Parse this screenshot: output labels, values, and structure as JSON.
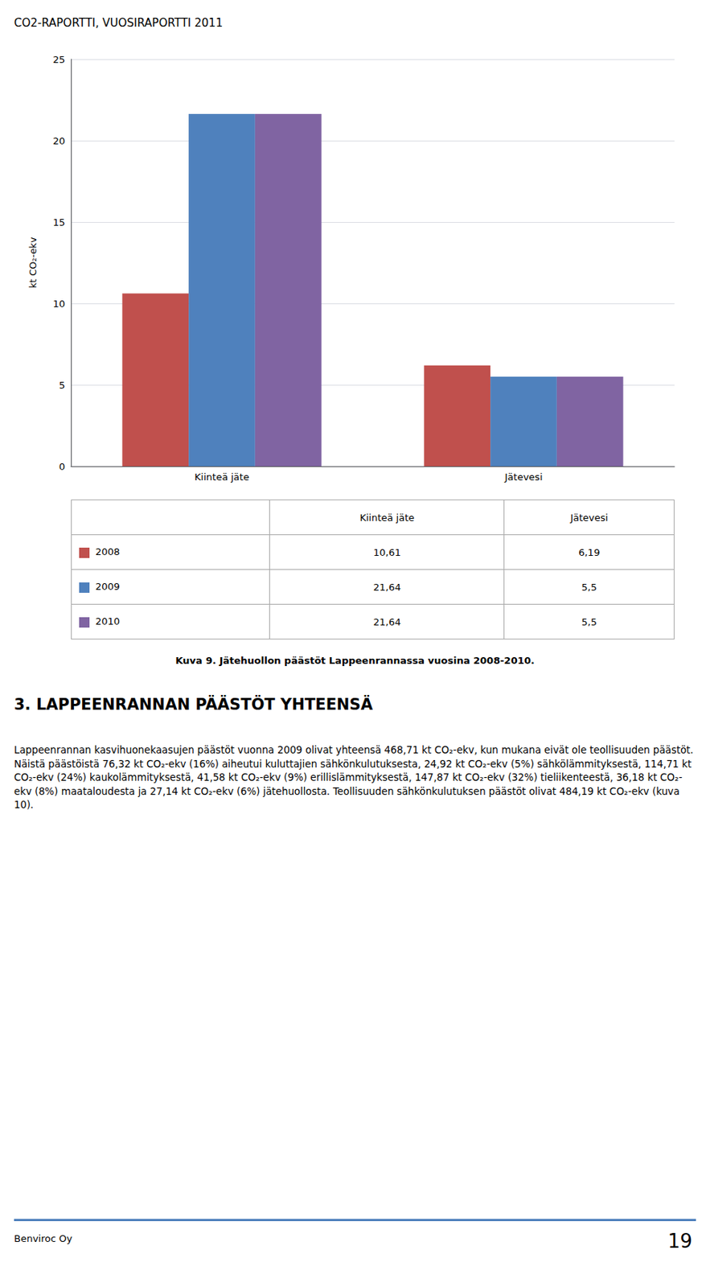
{
  "page_title": "CO2-RAPORTTI, VUOSIRAPORTTI 2011",
  "chart_data": {
    "type": "bar",
    "categories": [
      "Kiinteä jäte",
      "Jätevesi"
    ],
    "series": [
      {
        "name": "2008",
        "color": "#C0504D",
        "values": [
          10.61,
          6.19
        ],
        "value_labels": [
          "10,61",
          "6,19"
        ]
      },
      {
        "name": "2009",
        "color": "#4F81BD",
        "values": [
          21.64,
          5.5
        ],
        "value_labels": [
          "21,64",
          "5,5"
        ]
      },
      {
        "name": "2010",
        "color": "#8064A2",
        "values": [
          21.64,
          5.5
        ],
        "value_labels": [
          "21,64",
          "5,5"
        ]
      }
    ],
    "ylabel": "kt CO₂-ekv",
    "ylim": [
      0,
      25
    ],
    "yticks": [
      0,
      5,
      10,
      15,
      20,
      25
    ],
    "grid": true
  },
  "caption": "Kuva 9. Jätehuollon päästöt Lappeenrannassa vuosina 2008-2010.",
  "section_title": "3. LAPPEENRANNAN PÄÄSTÖT YHTEENSÄ",
  "body_text": "Lappeenrannan kasvihuonekaasujen päästöt vuonna 2009 olivat yhteensä 468,71 kt CO₂-ekv, kun mukana eivät ole teollisuuden päästöt. Näistä päästöistä 76,32 kt CO₂-ekv (16%) aiheutui kuluttajien sähkönkulutuksesta, 24,92 kt CO₂-ekv (5%) sähkölämmityksestä, 114,71 kt CO₂-ekv (24%) kaukolämmityksestä, 41,58 kt CO₂-ekv (9%) erillislämmityksestä, 147,87 kt CO₂-ekv (32%) tieliikenteestä, 36,18 kt CO₂-ekv (8%) maataloudesta ja 27,14 kt CO₂-ekv (6%) jätehuollosta. Teollisuuden sähkönkulutuksen päästöt olivat 484,19 kt CO₂-ekv (kuva 10).",
  "footer_left": "Benviroc Oy",
  "footer_right": "19",
  "footer_line_color": "#4F81BD"
}
